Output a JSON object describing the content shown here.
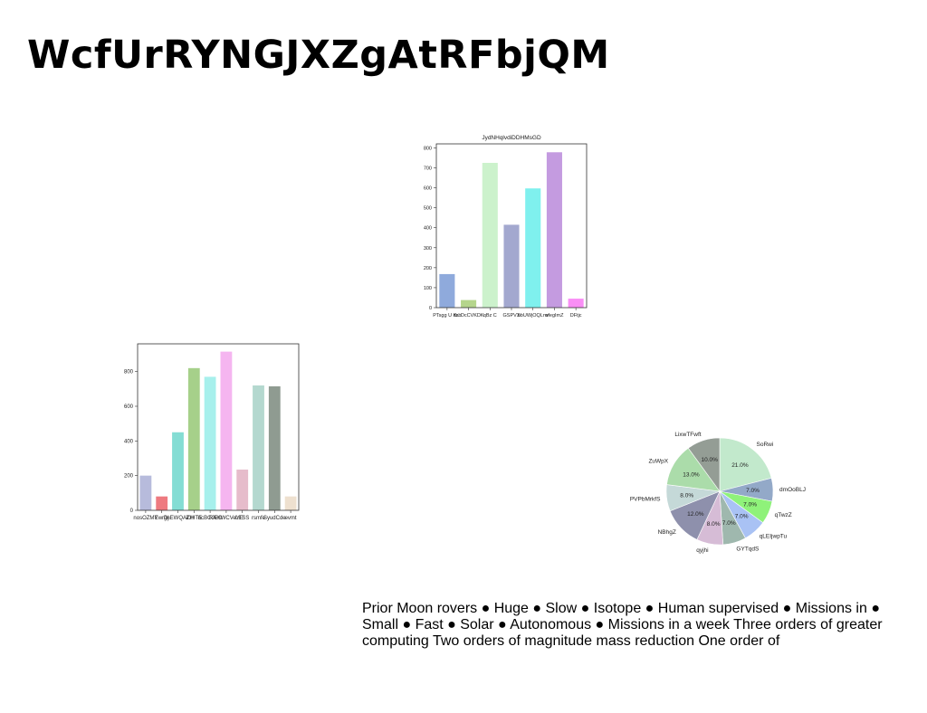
{
  "page_title": "WcfUrRYNGJXZgAtRFbjQM",
  "body_text": "Prior Moon rovers ● Huge ● Slow ● Isotope ● Human supervised ● Missions in ● Small ● Fast ● Solar ● Autonomous ● Missions in a week Three orders of greater computing Two orders of magnitude mass reduction One order of",
  "chart_data": [
    {
      "type": "bar",
      "title": "JydNHqlvdiDDHMsGD",
      "categories": [
        "PTsgg U dsb",
        "Kr. DcCVKDK",
        "qBz C",
        "GSPVX",
        "bbUWjOQLrw",
        "ufegImZ",
        "DFtjc"
      ],
      "values": [
        168,
        38,
        725,
        415,
        597,
        778,
        45
      ],
      "colors": [
        "#8faadc",
        "#b5d58c",
        "#ccf2cc",
        "#a3a8cf",
        "#7ff0ee",
        "#c49be0",
        "#f98ef5"
      ],
      "ylim": [
        0,
        820
      ],
      "yticks": [
        0,
        100,
        200,
        300,
        400,
        500,
        600,
        700,
        800
      ]
    },
    {
      "type": "bar",
      "title": "",
      "categories": [
        "nosOZMY",
        "Ew Dj",
        "rgnEWQAZH",
        "lDHTE",
        "ncBGJEO",
        "RAHWCVeYE",
        "LESS",
        "rsmfe",
        "SyudCde",
        "evmt"
      ],
      "values": [
        200,
        80,
        450,
        820,
        770,
        915,
        235,
        720,
        715,
        80
      ],
      "colors": [
        "#b7bbdc",
        "#ee7a80",
        "#84ddd4",
        "#a6d08a",
        "#a7f0ec",
        "#f5b5f0",
        "#e6bccb",
        "#b4d8cf",
        "#8f9b91",
        "#eee0cf"
      ],
      "ylim": [
        0,
        960
      ],
      "yticks": [
        0,
        200,
        400,
        600,
        800
      ]
    },
    {
      "type": "pie",
      "title": "",
      "labels": [
        "SoRwi",
        "dmOoBLJ",
        "qTwzZ",
        "qLEIjwpTu",
        "GYTqdS",
        "qyjhi",
        "NBhgZ",
        "PVPbMrkfS",
        "ZuWpX",
        "LixwTFwft"
      ],
      "values": [
        21.0,
        7.0,
        7.0,
        7.0,
        7.0,
        8.0,
        12.0,
        8.0,
        13.0,
        10.0
      ],
      "pct_labels": [
        "21.0%",
        "7.0%",
        "7.0%",
        "7.0%",
        "7.0%",
        "8.0%",
        "12.0%",
        "8.0%",
        "13.0%",
        "10.0%"
      ],
      "colors": [
        "#c2e9cc",
        "#93a9c8",
        "#8ff27a",
        "#a9c2f4",
        "#9fb8ae",
        "#d6bcd6",
        "#8e90ac",
        "#c5d9d8",
        "#abdcaa",
        "#949d95"
      ]
    }
  ]
}
